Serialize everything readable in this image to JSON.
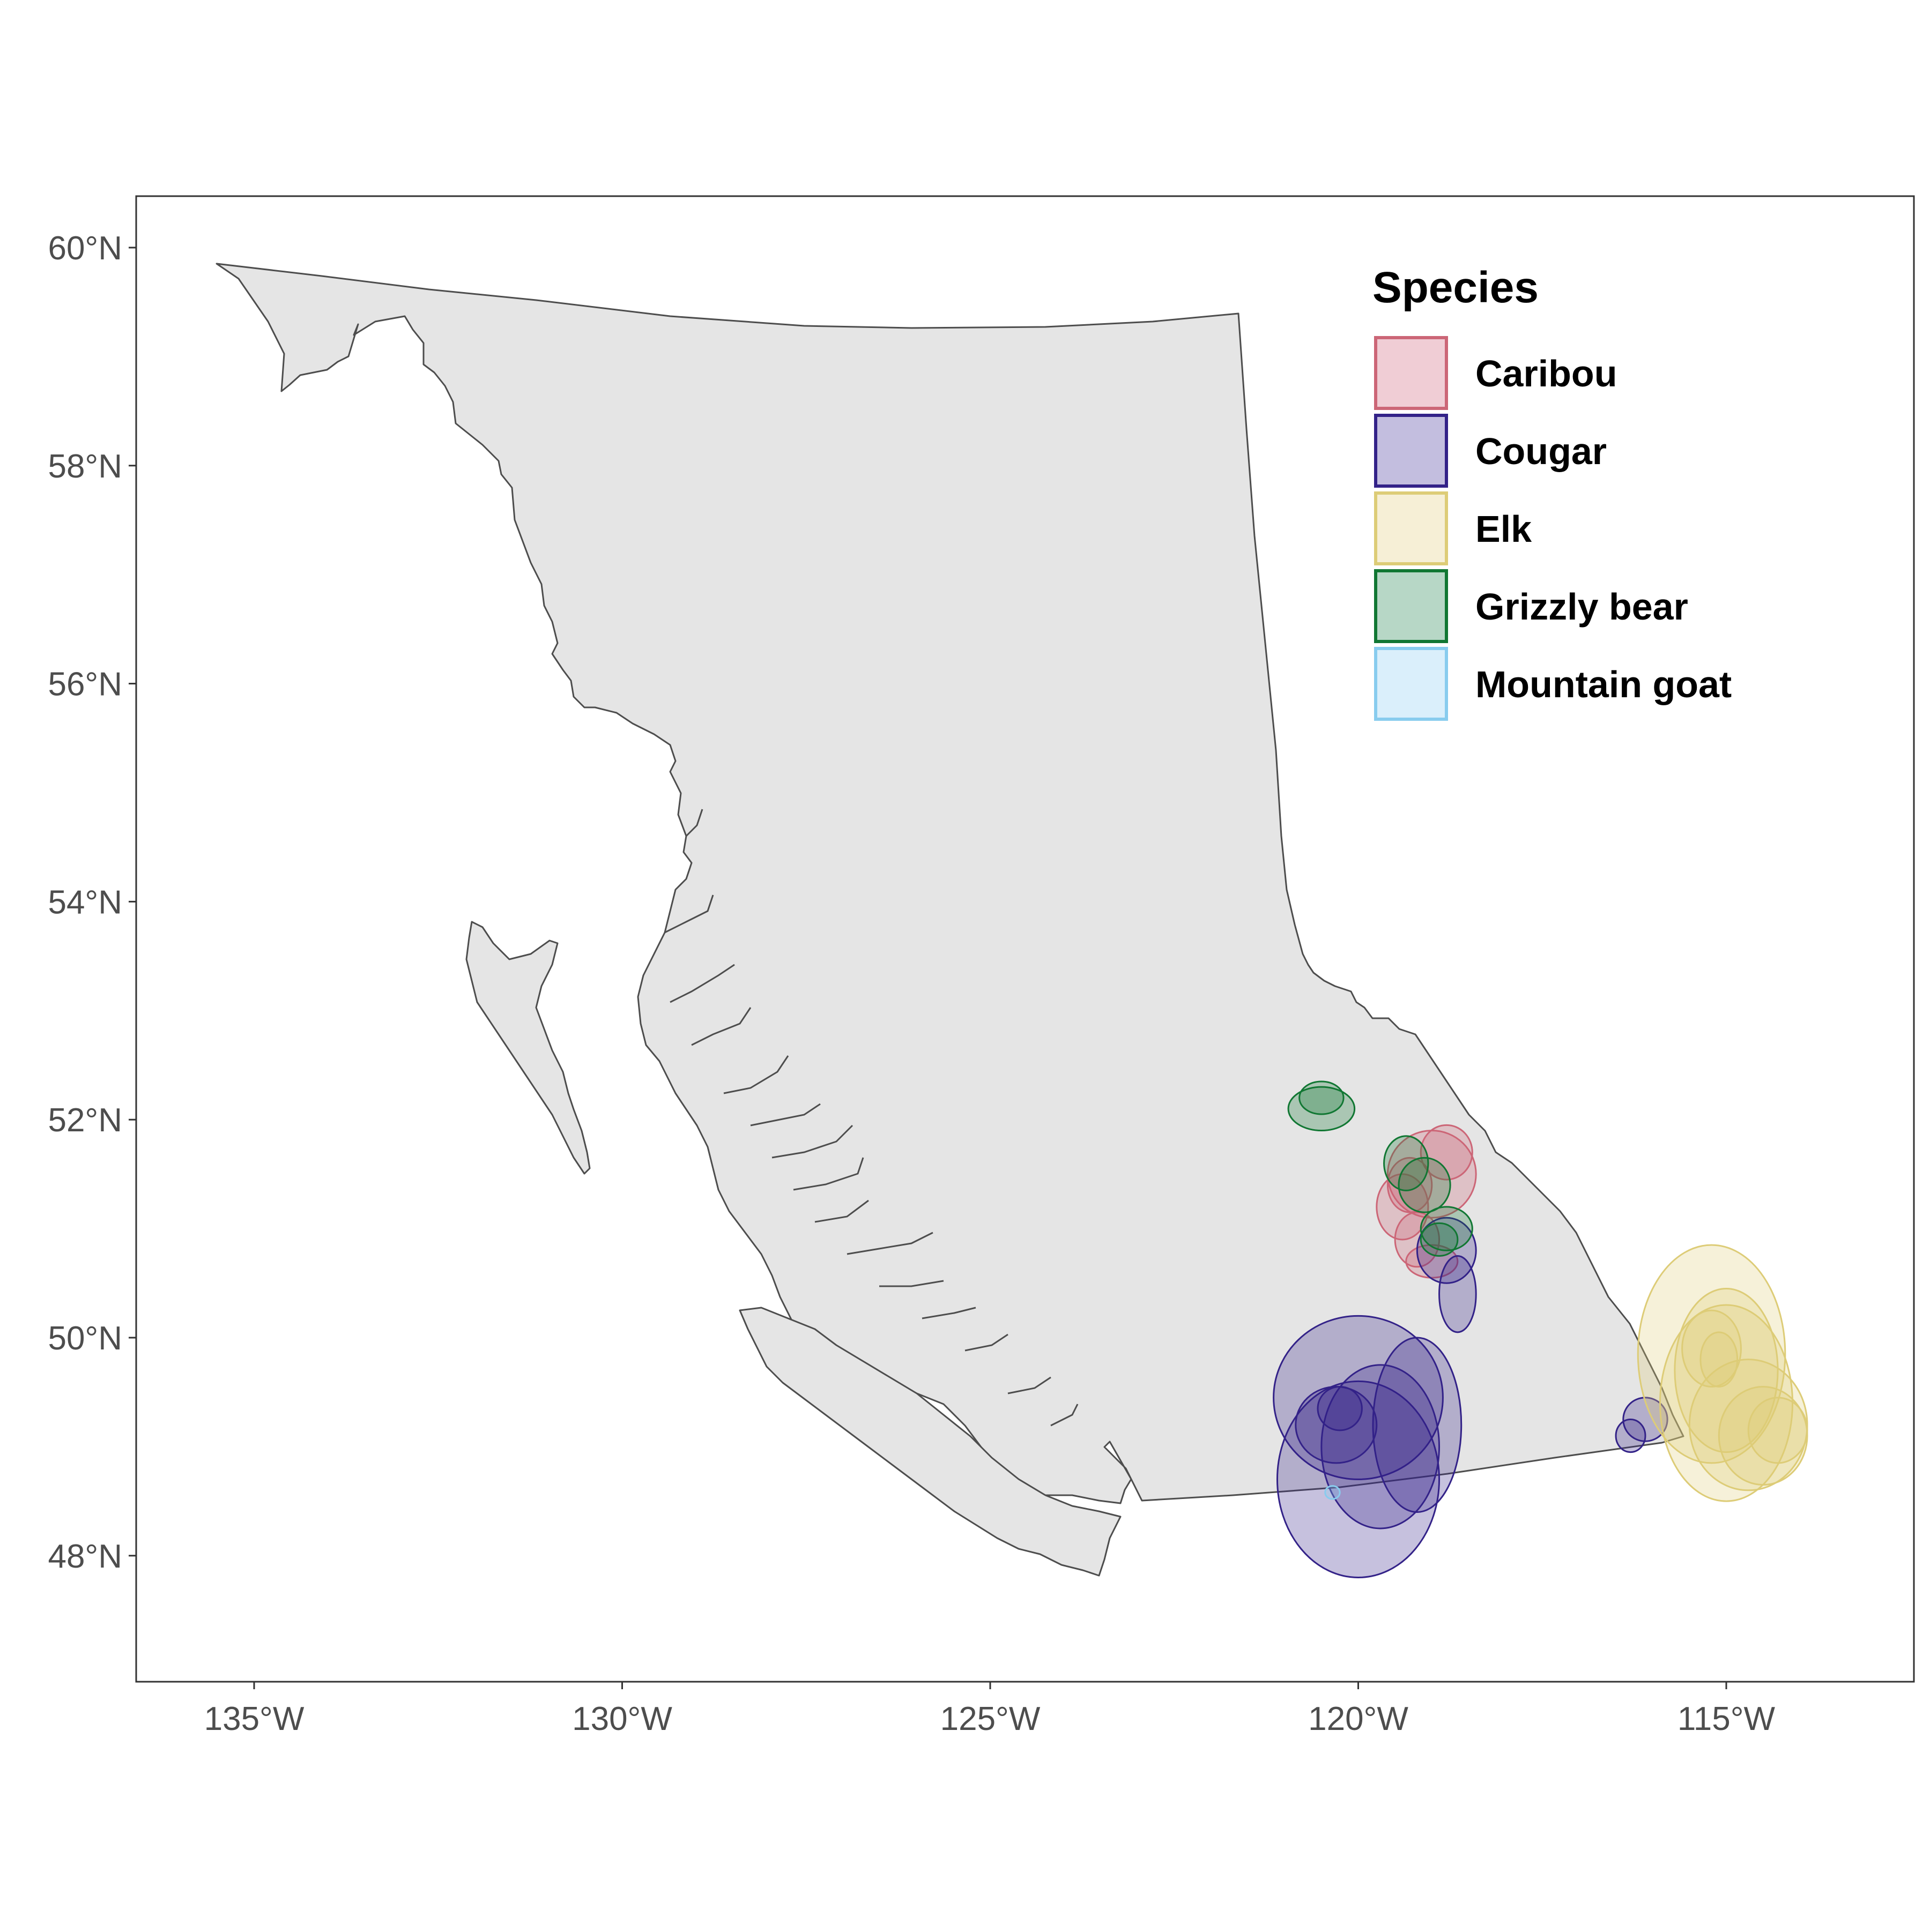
{
  "map": {
    "legend": {
      "title": "Species",
      "items": [
        {
          "label": "Caribou",
          "fill": "#f0cdd5",
          "stroke": "#cc6677"
        },
        {
          "label": "Cougar",
          "fill": "#c3bedf",
          "stroke": "#332288"
        },
        {
          "label": "Elk",
          "fill": "#f6efd6",
          "stroke": "#ddcc77"
        },
        {
          "label": "Grizzly bear",
          "fill": "#b7d7c6",
          "stroke": "#117733"
        },
        {
          "label": "Mountain goat",
          "fill": "#daeffb",
          "stroke": "#88ccee"
        }
      ]
    },
    "y_ticks": [
      {
        "value": 60,
        "label": "60°N"
      },
      {
        "value": 58,
        "label": "58°N"
      },
      {
        "value": 56,
        "label": "56°N"
      },
      {
        "value": 54,
        "label": "54°N"
      },
      {
        "value": 52,
        "label": "52°N"
      },
      {
        "value": 50,
        "label": "50°N"
      },
      {
        "value": 48,
        "label": "48°N"
      }
    ],
    "x_ticks": [
      {
        "value": -135,
        "label": "135°W"
      },
      {
        "value": -130,
        "label": "130°W"
      },
      {
        "value": -125,
        "label": "125°W"
      },
      {
        "value": -120,
        "label": "120°W"
      },
      {
        "value": -115,
        "label": "115°W"
      }
    ],
    "land_color": "#e5e5e5",
    "outline_color": "#4d4d4d",
    "xlim": [
      -136.6,
      -112.9
    ],
    "ylim": [
      46.9,
      60.5
    ],
    "home_ranges": [
      {
        "species": "Caribou",
        "lon": -119.0,
        "lat": 51.5,
        "rlon": 0.6,
        "rlat": 0.4
      },
      {
        "species": "Caribou",
        "lon": -119.4,
        "lat": 51.2,
        "rlon": 0.35,
        "rlat": 0.3
      },
      {
        "species": "Caribou",
        "lon": -118.8,
        "lat": 51.7,
        "rlon": 0.35,
        "rlat": 0.25
      },
      {
        "species": "Caribou",
        "lon": -119.2,
        "lat": 50.9,
        "rlon": 0.3,
        "rlat": 0.25
      },
      {
        "species": "Caribou",
        "lon": -119.0,
        "lat": 50.7,
        "rlon": 0.35,
        "rlat": 0.15
      },
      {
        "species": "Caribou",
        "lon": -119.3,
        "lat": 51.4,
        "rlon": 0.3,
        "rlat": 0.25
      },
      {
        "species": "Cougar",
        "lon": -120.0,
        "lat": 49.45,
        "rlon": 1.15,
        "rlat": 0.75
      },
      {
        "species": "Cougar",
        "lon": -120.0,
        "lat": 48.7,
        "rlon": 1.1,
        "rlat": 0.9
      },
      {
        "species": "Cougar",
        "lon": -119.2,
        "lat": 49.2,
        "rlon": 0.6,
        "rlat": 0.8
      },
      {
        "species": "Cougar",
        "lon": -119.7,
        "lat": 49.0,
        "rlon": 0.8,
        "rlat": 0.75
      },
      {
        "species": "Cougar",
        "lon": -120.3,
        "lat": 49.2,
        "rlon": 0.55,
        "rlat": 0.35
      },
      {
        "species": "Cougar",
        "lon": -120.25,
        "lat": 49.35,
        "rlon": 0.3,
        "rlat": 0.2
      },
      {
        "species": "Cougar",
        "lon": -118.8,
        "lat": 50.8,
        "rlon": 0.4,
        "rlat": 0.3
      },
      {
        "species": "Cougar",
        "lon": -118.65,
        "lat": 50.4,
        "rlon": 0.25,
        "rlat": 0.35
      },
      {
        "species": "Cougar",
        "lon": -116.1,
        "lat": 49.25,
        "rlon": 0.3,
        "rlat": 0.2
      },
      {
        "species": "Cougar",
        "lon": -116.3,
        "lat": 49.1,
        "rlon": 0.2,
        "rlat": 0.15
      },
      {
        "species": "Elk",
        "lon": -115.2,
        "lat": 49.85,
        "rlon": 1.0,
        "rlat": 1.0
      },
      {
        "species": "Elk",
        "lon": -115.0,
        "lat": 49.4,
        "rlon": 0.9,
        "rlat": 0.9
      },
      {
        "species": "Elk",
        "lon": -115.0,
        "lat": 49.7,
        "rlon": 0.7,
        "rlat": 0.75
      },
      {
        "species": "Elk",
        "lon": -114.7,
        "lat": 49.2,
        "rlon": 0.8,
        "rlat": 0.6
      },
      {
        "species": "Elk",
        "lon": -114.5,
        "lat": 49.1,
        "rlon": 0.6,
        "rlat": 0.45
      },
      {
        "species": "Elk",
        "lon": -115.2,
        "lat": 49.9,
        "rlon": 0.4,
        "rlat": 0.35
      },
      {
        "species": "Elk",
        "lon": -114.3,
        "lat": 49.15,
        "rlon": 0.4,
        "rlat": 0.3
      },
      {
        "species": "Elk",
        "lon": -115.1,
        "lat": 49.8,
        "rlon": 0.25,
        "rlat": 0.25
      },
      {
        "species": "Grizzly bear",
        "lon": -120.5,
        "lat": 52.1,
        "rlon": 0.45,
        "rlat": 0.2
      },
      {
        "species": "Grizzly bear",
        "lon": -120.5,
        "lat": 52.2,
        "rlon": 0.3,
        "rlat": 0.15
      },
      {
        "species": "Grizzly bear",
        "lon": -119.35,
        "lat": 51.6,
        "rlon": 0.3,
        "rlat": 0.25
      },
      {
        "species": "Grizzly bear",
        "lon": -118.8,
        "lat": 51.0,
        "rlon": 0.35,
        "rlat": 0.2
      },
      {
        "species": "Grizzly bear",
        "lon": -119.1,
        "lat": 51.4,
        "rlon": 0.35,
        "rlat": 0.25
      },
      {
        "species": "Grizzly bear",
        "lon": -118.9,
        "lat": 50.9,
        "rlon": 0.25,
        "rlat": 0.15
      },
      {
        "species": "Mountain goat",
        "lon": -120.35,
        "lat": 48.58,
        "rlon": 0.1,
        "rlat": 0.06
      }
    ]
  }
}
